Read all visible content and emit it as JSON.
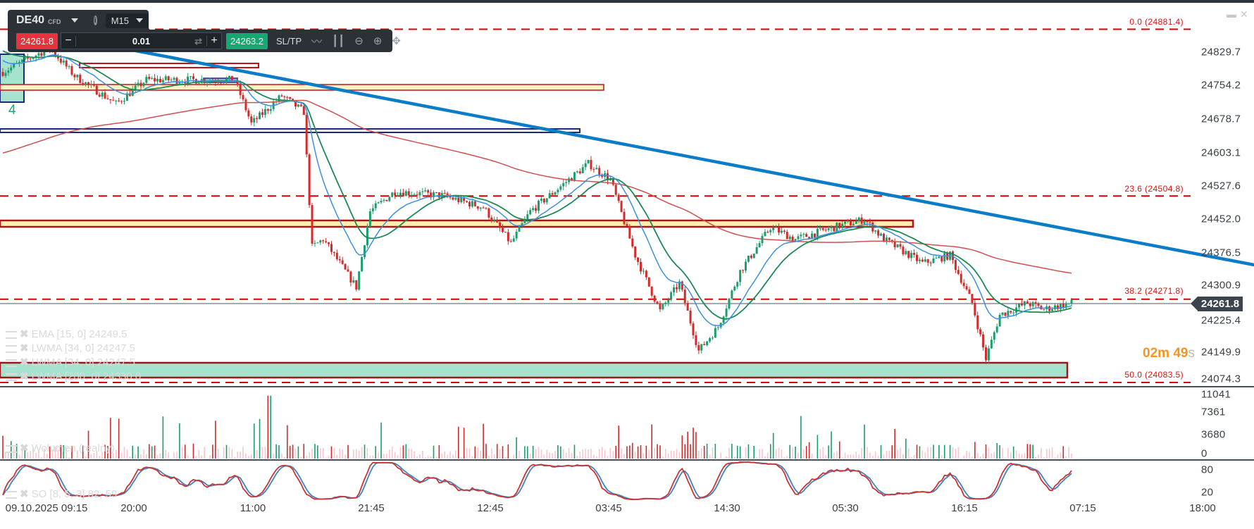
{
  "toolbar": {
    "symbol": "DE40",
    "symbol_type": "CFD",
    "timeframe": "M15",
    "sell_price": "24261.8",
    "buy_price": "24263.2",
    "volume": "0.01",
    "minus": "−",
    "plus": "+",
    "sltp_label": "SL/TP",
    "info_label": "i"
  },
  "price_axis": [
    "24829.7",
    "24754.2",
    "24678.7",
    "24603.1",
    "24527.6",
    "24452.0",
    "24376.5",
    "24300.9",
    "24225.4",
    "24149.9",
    "24074.3"
  ],
  "volume_axis": [
    "11041",
    "7361",
    "3680",
    "0"
  ],
  "so_axis": [
    "80",
    "20"
  ],
  "time_axis": [
    "09.10.2025 09:15",
    "20:00",
    "11:00",
    "21:45",
    "12:45",
    "03:45",
    "14:30",
    "05:30",
    "16:15",
    "07:15",
    "18:00"
  ],
  "current_price": "24261.8",
  "fibonacci": [
    {
      "label": "0.0 (24881.4)",
      "price": 24881.4
    },
    {
      "label": "23.6 (24504.8)",
      "price": 24504.8
    },
    {
      "label": "38.2 (24271.8)",
      "price": 24271.8
    },
    {
      "label": "50.0 (24083.5)",
      "price": 24083.5
    }
  ],
  "indicators": [
    "EMA [15, 0] 24249.5",
    "LWMA [34, 0] 24247.5",
    "LWMA [34, 0] 24247.5",
    "LWMA [200, 0] 24330.0"
  ],
  "volume_legend": "Wolumen (realny)",
  "so_legend": "SO [8, 5, 3] 82, 59",
  "countdown": {
    "minutes": "02m",
    "seconds": "49",
    "s": "s"
  },
  "box_label": "4",
  "colors": {
    "up": "#1a9e6c",
    "down": "#d42a2a",
    "fib": "#d40000",
    "trend": "#0a7cc8",
    "ema": "#3d8fe0",
    "lwma34": "#1b8a55",
    "lwma200": "#d05050"
  },
  "chart_data": {
    "type": "candlestick",
    "symbol": "DE40",
    "timeframe": "M15",
    "ylim": [
      24074.3,
      24881.4
    ],
    "price_path": [
      [
        0,
        24785
      ],
      [
        17,
        24839
      ],
      [
        26,
        24776
      ],
      [
        41,
        24713
      ],
      [
        52,
        24767
      ],
      [
        70,
        24767
      ],
      [
        84,
        24767
      ],
      [
        90,
        24668
      ],
      [
        101,
        24731
      ],
      [
        109,
        24695
      ],
      [
        112,
        24389
      ],
      [
        116,
        24407
      ],
      [
        128,
        24299
      ],
      [
        133,
        24470
      ],
      [
        142,
        24515
      ],
      [
        159,
        24506
      ],
      [
        174,
        24479
      ],
      [
        184,
        24398
      ],
      [
        191,
        24470
      ],
      [
        212,
        24578
      ],
      [
        220,
        24542
      ],
      [
        229,
        24371
      ],
      [
        238,
        24245
      ],
      [
        245,
        24308
      ],
      [
        252,
        24155
      ],
      [
        259,
        24209
      ],
      [
        267,
        24335
      ],
      [
        278,
        24434
      ],
      [
        287,
        24407
      ],
      [
        301,
        24434
      ],
      [
        312,
        24452
      ],
      [
        319,
        24407
      ],
      [
        333,
        24353
      ],
      [
        343,
        24371
      ],
      [
        351,
        24263
      ],
      [
        356,
        24137
      ],
      [
        361,
        24236
      ],
      [
        371,
        24263
      ],
      [
        377,
        24249
      ],
      [
        387,
        24263
      ]
    ],
    "trendline": [
      [
        17,
        24870
      ],
      [
        465,
        24335
      ]
    ],
    "so_levels": [
      80,
      20
    ],
    "volume_max": 11041
  }
}
